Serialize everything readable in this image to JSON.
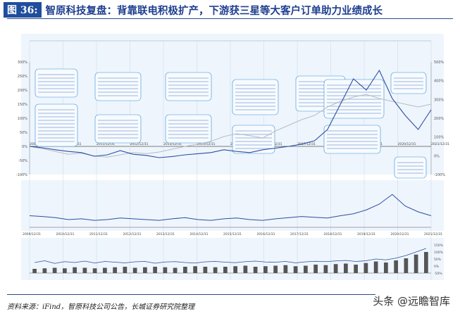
{
  "header": {
    "figure_label": "图 36:",
    "title": "智原科技复盘：背靠联电积极扩产，下游获三星等大客户订单助力业绩成长"
  },
  "footer": {
    "source": "资料来源：iFind，智原科技公司公告，长城证券研究院整理",
    "watermark": "头条 @远瞻智库"
  },
  "colors": {
    "primary": "#2b4fa0",
    "secondary": "#b8bcc4",
    "panel_bg": "#eef5fc",
    "annotation": "#3a8fd8"
  },
  "chart_data": [
    {
      "type": "line",
      "panel": "price",
      "left_ticks": [
        "300%",
        "250%",
        "200%",
        "150%",
        "100%",
        "50%",
        "0%",
        "-50%",
        "-100%"
      ],
      "ylim_left": [
        -100,
        300
      ],
      "right_ticks": [
        "500%",
        "400%",
        "300%",
        "200%",
        "100%",
        "0%",
        "-100%"
      ],
      "ylim_right": [
        -100,
        500
      ],
      "x_ticks": [
        "2009/12/31",
        "2010/12/31",
        "2011/12/31",
        "2012/12/31",
        "2013/12/31",
        "2014/12/31",
        "2015/12/31",
        "2016/12/31",
        "2017/12/31",
        "2018/12/31",
        "2019/12/31",
        "2020/12/31",
        "2021/12/31"
      ],
      "series": [
        {
          "color": "#2b4fa0",
          "values": [
            0,
            -5,
            -12,
            -18,
            -22,
            -35,
            -30,
            -15,
            -28,
            -32,
            -40,
            -36,
            -30,
            -26,
            -22,
            -12,
            -18,
            -22,
            -12,
            -6,
            0,
            8,
            20,
            60,
            150,
            240,
            200,
            270,
            170,
            110,
            60,
            130
          ]
        },
        {
          "color": "#b8bcc4",
          "values": [
            0,
            -8,
            -18,
            -28,
            -24,
            -34,
            -38,
            -30,
            -22,
            -26,
            -20,
            -10,
            0,
            8,
            18,
            35,
            45,
            38,
            30,
            55,
            75,
            95,
            110,
            140,
            160,
            175,
            185,
            170,
            160,
            150,
            140,
            150
          ]
        }
      ]
    },
    {
      "type": "line",
      "panel": "pe",
      "x_ticks": [
        "2009/12/31",
        "2010/12/31",
        "2011/12/31",
        "2012/12/31",
        "2013/12/31",
        "2014/12/31",
        "2015/12/31",
        "2016/12/31",
        "2017/12/31",
        "2018/12/31",
        "2019/12/31",
        "2020/12/31",
        "2021/12/31"
      ],
      "series": [
        {
          "color": "#2b4fa0",
          "values": [
            30,
            28,
            25,
            20,
            22,
            18,
            20,
            24,
            22,
            20,
            18,
            22,
            25,
            20,
            18,
            22,
            24,
            20,
            18,
            22,
            25,
            28,
            26,
            24,
            30,
            35,
            45,
            60,
            85,
            55,
            40,
            30
          ]
        }
      ]
    },
    {
      "type": "bar",
      "panel": "revenue",
      "right_ticks": [
        "150%",
        "100%",
        "50%",
        "0%",
        "-50%"
      ],
      "values": [
        8,
        9,
        10,
        9,
        11,
        10,
        9,
        10,
        11,
        12,
        10,
        11,
        12,
        11,
        10,
        12,
        13,
        12,
        11,
        12,
        13,
        14,
        12,
        13,
        14,
        15,
        13,
        14,
        16,
        15,
        17,
        18,
        16,
        19,
        22,
        20,
        24,
        28,
        35,
        40
      ],
      "line": [
        0,
        10,
        -5,
        5,
        0,
        8,
        -3,
        6,
        2,
        -2,
        4,
        6,
        -4,
        3,
        5,
        0,
        -3,
        4,
        6,
        2,
        -1,
        5,
        8,
        3,
        2,
        6,
        -2,
        4,
        7,
        5,
        9,
        12,
        6,
        10,
        20,
        15,
        25,
        40,
        60,
        80
      ]
    }
  ]
}
